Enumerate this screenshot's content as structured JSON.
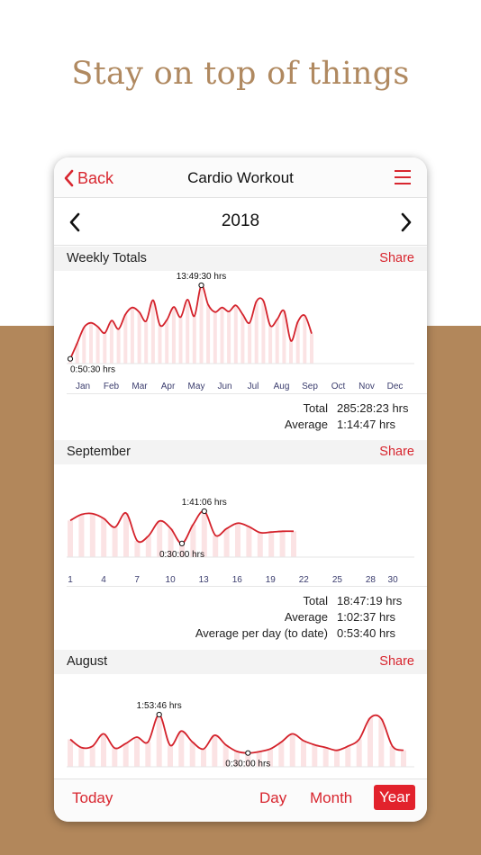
{
  "headline": "Stay on top of things",
  "navbar": {
    "back_label": "Back",
    "title": "Cardio Workout"
  },
  "year_nav": {
    "year": "2018"
  },
  "colors": {
    "accent": "#d8262f",
    "brown": "#b2875b",
    "headline": "#b08960"
  },
  "sections": [
    {
      "title": "Weekly Totals",
      "share_label": "Share",
      "stats": [
        {
          "label": "Total",
          "value": "285:28:23 hrs"
        },
        {
          "label": "Average",
          "value": "1:14:47 hrs"
        }
      ]
    },
    {
      "title": "September",
      "share_label": "Share",
      "stats": [
        {
          "label": "Total",
          "value": "18:47:19 hrs"
        },
        {
          "label": "Average",
          "value": "1:02:37 hrs"
        },
        {
          "label": "Average per day (to date)",
          "value": "0:53:40 hrs"
        }
      ]
    },
    {
      "title": "August",
      "share_label": "Share"
    }
  ],
  "tabs": {
    "today": "Today",
    "day": "Day",
    "month": "Month",
    "year": "Year",
    "selected": "year"
  },
  "chart_data": [
    {
      "type": "area",
      "title": "Weekly Totals",
      "unit": "hrs",
      "categories": [
        "Jan",
        "Feb",
        "Mar",
        "Apr",
        "May",
        "Jun",
        "Jul",
        "Aug",
        "Sep",
        "Oct",
        "Nov",
        "Dec"
      ],
      "x": [
        1,
        2,
        3,
        4,
        5,
        6,
        7,
        8,
        9,
        10,
        11,
        12,
        13,
        14,
        15,
        16,
        17,
        18,
        19,
        20,
        21,
        22,
        23,
        24,
        25,
        26,
        27,
        28,
        29,
        30,
        31,
        32,
        33,
        34,
        35,
        36
      ],
      "values": [
        0.84,
        3.6,
        6.4,
        7.2,
        6.5,
        5.4,
        7.6,
        6.1,
        8.7,
        9.9,
        9.1,
        7.5,
        11.2,
        6.8,
        7.7,
        10.0,
        8.2,
        11.3,
        8.4,
        13.83,
        10.4,
        9.1,
        9.9,
        9.2,
        10.3,
        8.7,
        7.2,
        11.0,
        11.1,
        6.7,
        7.8,
        9.3,
        4.0,
        7.4,
        8.5,
        5.3
      ],
      "annotations": [
        {
          "label": "13:49:30 hrs",
          "type": "max",
          "week": 20
        },
        {
          "label": "0:50:30 hrs",
          "type": "min",
          "week": 1
        }
      ],
      "stats": {
        "Total": "285:28:23 hrs",
        "Average": "1:14:47 hrs"
      }
    },
    {
      "type": "area",
      "title": "September",
      "unit": "hrs",
      "x_ticks": [
        1,
        4,
        7,
        10,
        13,
        16,
        19,
        22,
        25,
        28,
        30
      ],
      "x": [
        1,
        2,
        3,
        4,
        5,
        6,
        7,
        8,
        9,
        10,
        11,
        12,
        13,
        14,
        15,
        16,
        17,
        18,
        19,
        20,
        21
      ],
      "values": [
        1.35,
        1.57,
        1.6,
        1.42,
        1.1,
        1.62,
        0.6,
        0.78,
        1.33,
        1.05,
        0.5,
        1.2,
        1.69,
        0.8,
        1.05,
        1.25,
        1.12,
        0.9,
        0.92,
        0.95,
        0.95
      ],
      "annotations": [
        {
          "label": "1:41:06 hrs",
          "type": "max",
          "day": 13
        },
        {
          "label": "0:30:00 hrs",
          "type": "min",
          "day": 11
        }
      ],
      "stats": {
        "Total": "18:47:19 hrs",
        "Average": "1:02:37 hrs",
        "Average per day (to date)": "0:53:40 hrs"
      }
    },
    {
      "type": "area",
      "title": "August",
      "unit": "hrs",
      "x": [
        1,
        2,
        3,
        4,
        5,
        6,
        7,
        8,
        9,
        10,
        11,
        12,
        13,
        14,
        15,
        16,
        17,
        18,
        19,
        20,
        21,
        22,
        23,
        24,
        25,
        26,
        27,
        28,
        29,
        30,
        31
      ],
      "values": [
        1.0,
        0.7,
        0.75,
        1.2,
        0.68,
        0.85,
        1.08,
        0.9,
        1.9,
        0.78,
        1.3,
        0.9,
        0.65,
        1.15,
        0.8,
        0.56,
        0.5,
        0.55,
        0.65,
        0.9,
        1.2,
        0.95,
        0.8,
        0.7,
        0.6,
        0.75,
        1.0,
        1.78,
        1.75,
        0.75,
        0.6
      ],
      "annotations": [
        {
          "label": "1:53:46 hrs",
          "type": "max",
          "day": 9
        },
        {
          "label": "0:30:00 hrs",
          "type": "min",
          "day": 17
        }
      ]
    }
  ]
}
